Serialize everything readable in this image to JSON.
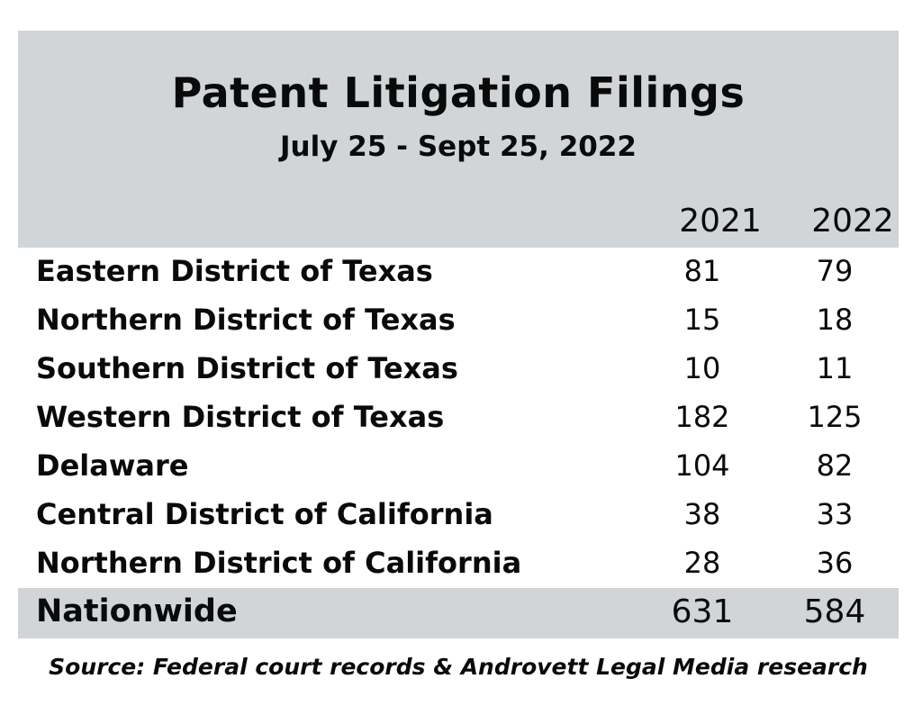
{
  "chart_data": {
    "type": "table",
    "title": "Patent Litigation Filings",
    "subtitle": "July 25 - Sept 25, 2022",
    "columns": [
      "2021",
      "2022"
    ],
    "rows": [
      {
        "label": "Eastern District of Texas",
        "values": [
          "81",
          "79"
        ]
      },
      {
        "label": "Northern District of Texas",
        "values": [
          "15",
          "18"
        ]
      },
      {
        "label": "Southern District of Texas",
        "values": [
          "10",
          "11"
        ]
      },
      {
        "label": "Western District of Texas",
        "values": [
          "182",
          "125"
        ]
      },
      {
        "label": "Delaware",
        "values": [
          "104",
          "82"
        ]
      },
      {
        "label": "Central District of California",
        "values": [
          "38",
          "33"
        ]
      },
      {
        "label": "Northern District of California",
        "values": [
          "28",
          "36"
        ]
      }
    ],
    "total": {
      "label": "Nationwide",
      "values": [
        "631",
        "584"
      ]
    },
    "source": "Source: Federal court records & Androvett Legal Media research"
  },
  "colors": {
    "band": "#d1d5d8",
    "text": "#0a0a0a",
    "background": "#ffffff"
  }
}
